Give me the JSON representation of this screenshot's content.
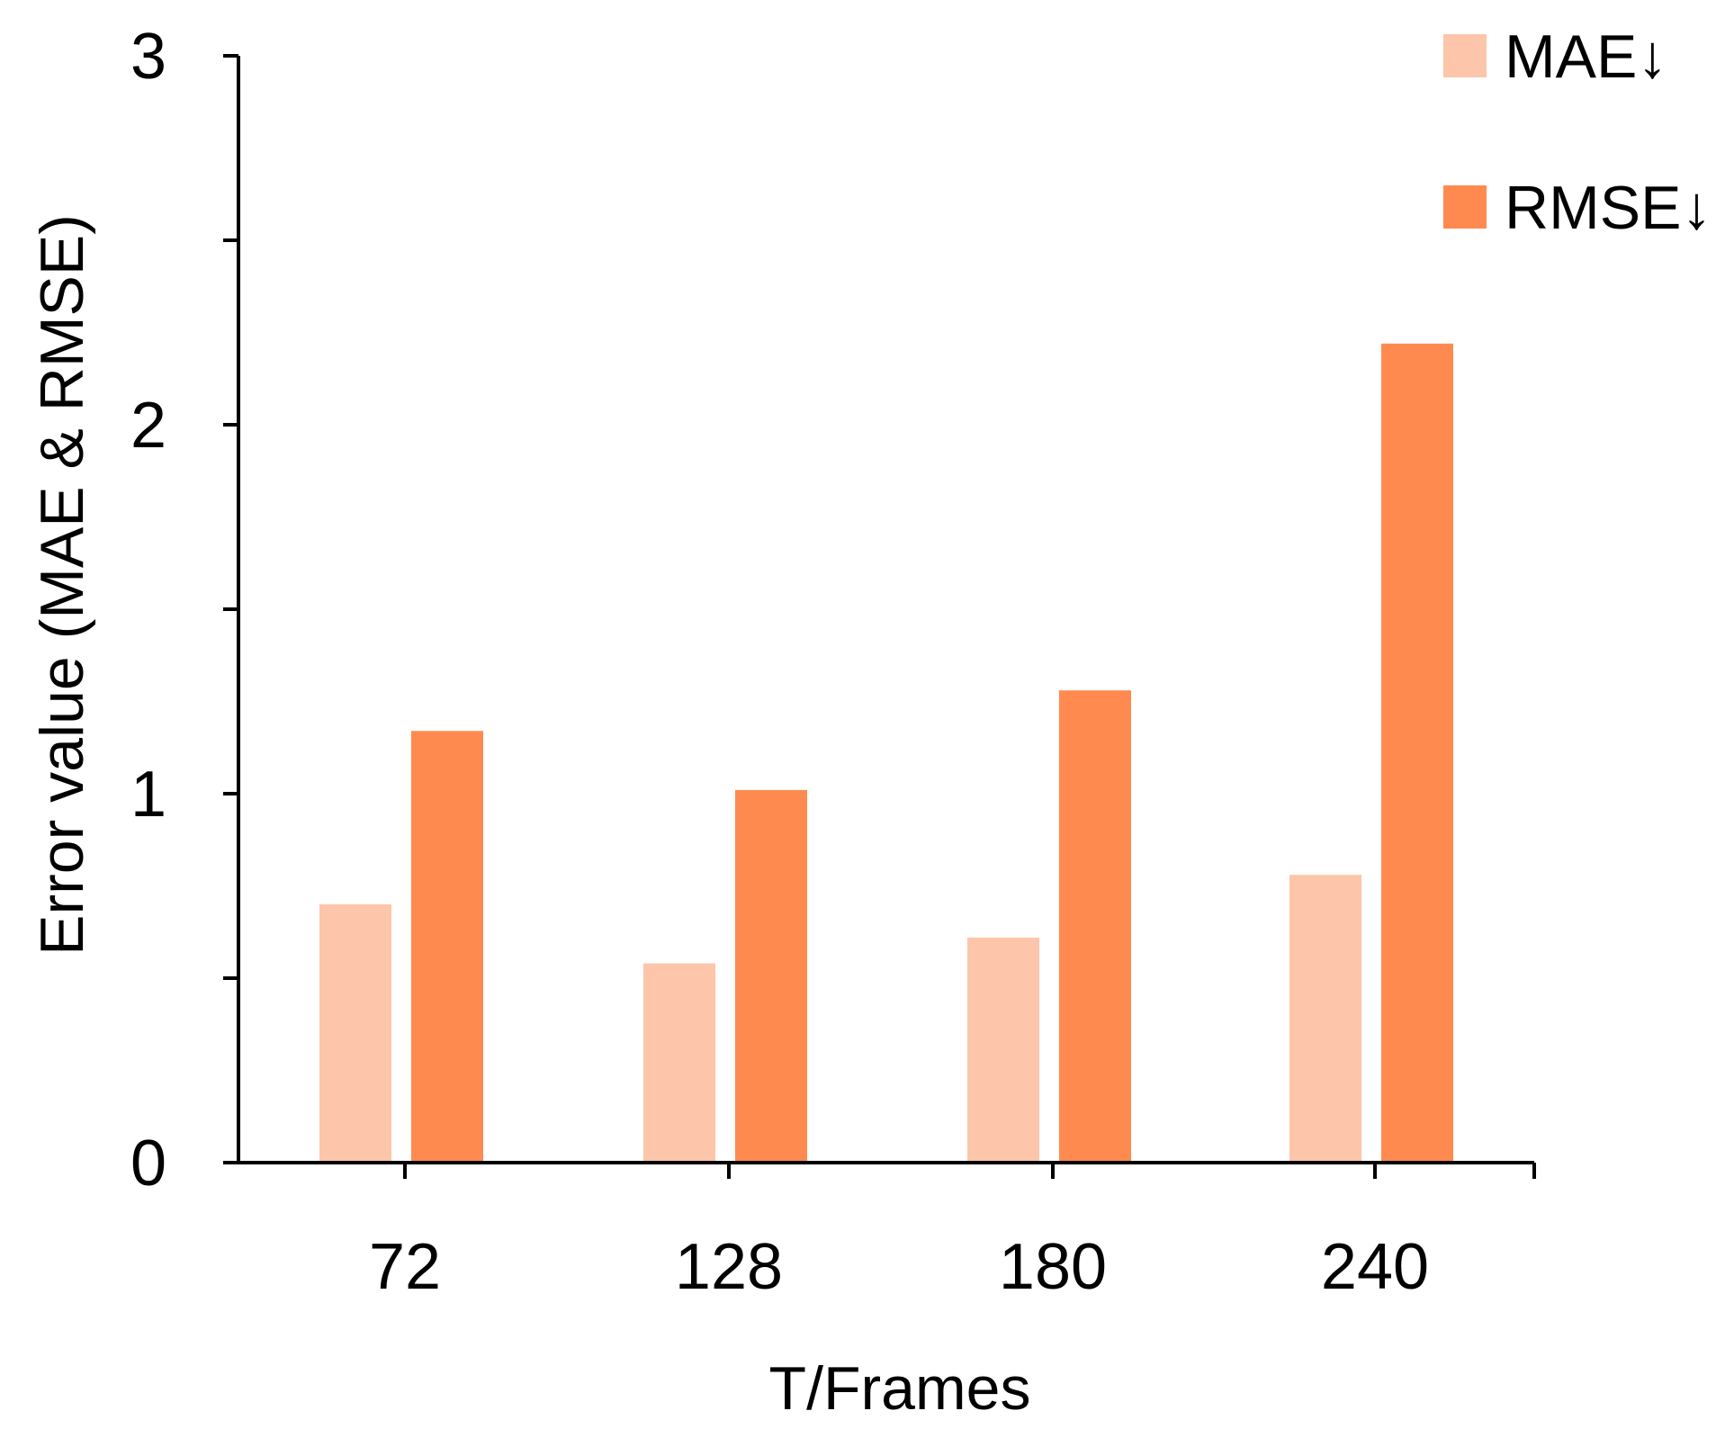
{
  "chart_data": {
    "type": "bar",
    "title": "",
    "xlabel": "T/Frames",
    "ylabel": "Error value (MAE & RMSE)",
    "categories": [
      "72",
      "128",
      "180",
      "240"
    ],
    "series": [
      {
        "name": "MAE↓",
        "values": [
          0.7,
          0.54,
          0.61,
          0.78
        ],
        "color": "#fdc5aa"
      },
      {
        "name": "RMSE↓",
        "values": [
          1.17,
          1.01,
          1.28,
          2.22
        ],
        "color": "#ff8a50"
      }
    ],
    "ylim": [
      0,
      3
    ],
    "yticks_labeled": [
      "0",
      "1",
      "2",
      "3"
    ],
    "ytick_values": [
      0,
      0.5,
      1,
      1.5,
      2,
      2.5,
      3
    ],
    "grid": false,
    "legend_position": "top-right",
    "axis_color": "#000000"
  }
}
